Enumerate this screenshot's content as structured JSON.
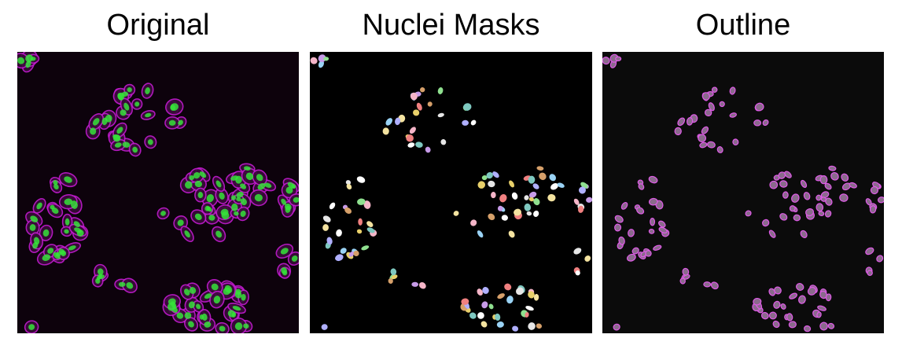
{
  "panels": [
    {
      "title": "Original"
    },
    {
      "title": "Nuclei Masks"
    },
    {
      "title": "Outline"
    }
  ],
  "colors": {
    "membrane": "#c21bd0",
    "nucleus_fluorescence": "#36e23a",
    "mask_background": "#000000",
    "outline": "#e05ae8"
  }
}
